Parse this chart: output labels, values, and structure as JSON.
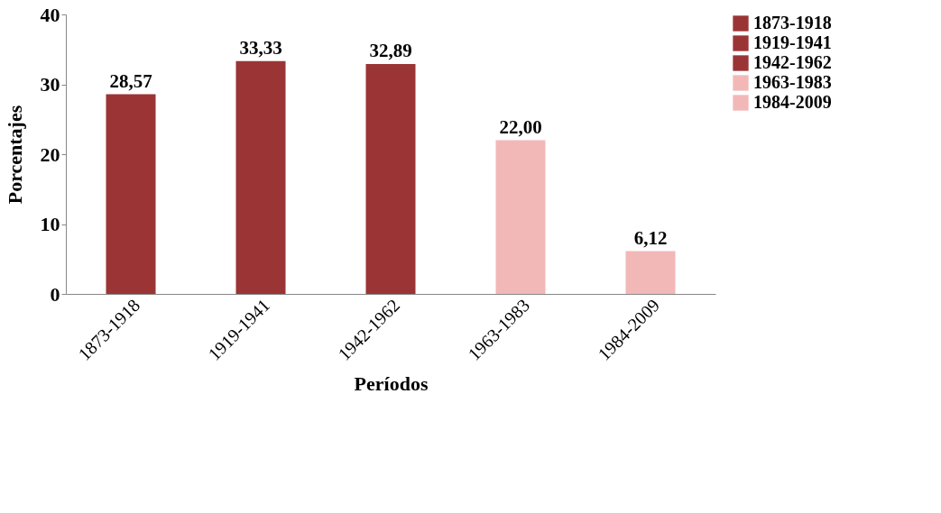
{
  "chart_data": {
    "type": "bar",
    "xlabel": "Períodos",
    "ylabel": "Porcentajes",
    "stacked": true,
    "categories": [
      "1873-1918",
      "1919-1941",
      "1942-1962",
      "1963-1983",
      "1984-2009"
    ],
    "series": [
      {
        "name": "1873-1918",
        "color": "#9b3535",
        "values": [
          28.57,
          null,
          null,
          null,
          null
        ],
        "value_labels": [
          "28,57",
          null,
          null,
          null,
          null
        ]
      },
      {
        "name": "1919-1941",
        "color": "#9b3535",
        "values": [
          null,
          33.33,
          null,
          null,
          null
        ],
        "value_labels": [
          null,
          "33,33",
          null,
          null,
          null
        ]
      },
      {
        "name": "1942-1962",
        "color": "#9b3535",
        "values": [
          null,
          null,
          32.89,
          null,
          null
        ],
        "value_labels": [
          null,
          null,
          "32,89",
          null,
          null
        ]
      },
      {
        "name": "1963-1983",
        "color": "#f2b8b8",
        "values": [
          null,
          null,
          null,
          22.0,
          null
        ],
        "value_labels": [
          null,
          null,
          null,
          "22,00",
          null
        ]
      },
      {
        "name": "1984-2009",
        "color": "#f2b8b8",
        "values": [
          null,
          null,
          null,
          null,
          6.12
        ],
        "value_labels": [
          null,
          null,
          null,
          null,
          "6,12"
        ]
      }
    ],
    "ylim": [
      0,
      40
    ],
    "yticks": [
      0,
      10,
      20,
      30,
      40
    ],
    "grid": false,
    "legend": "right"
  }
}
